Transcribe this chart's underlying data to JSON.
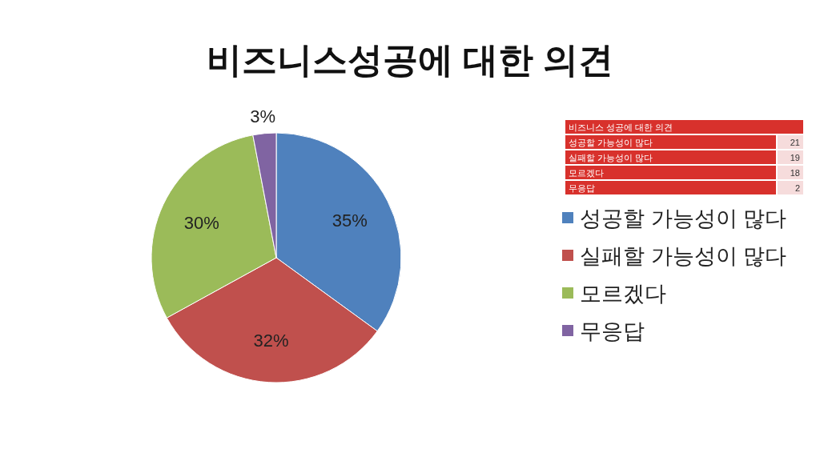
{
  "chart_data": [
    {
      "type": "pie",
      "title": "비즈니스성공에 대한 의견",
      "categories": [
        "성공할 가능성이 많다",
        "실패할 가능성이 많다",
        "모르겠다",
        "무응답"
      ],
      "values": [
        35,
        32,
        30,
        3
      ],
      "value_labels": [
        "35%",
        "32%",
        "30%",
        "3%"
      ],
      "colors": [
        "#4f81bd",
        "#c0504d",
        "#9bbb59",
        "#8064a2"
      ],
      "legend": "right"
    },
    {
      "type": "other",
      "title": "비즈니스 성공에 대한 의견",
      "categories": [
        "성공할 가능성이 많다",
        "실패할 가능성이 많다",
        "모르겠다",
        "무응답"
      ],
      "values": [
        21,
        19,
        18,
        2
      ],
      "data_labels": true
    }
  ]
}
